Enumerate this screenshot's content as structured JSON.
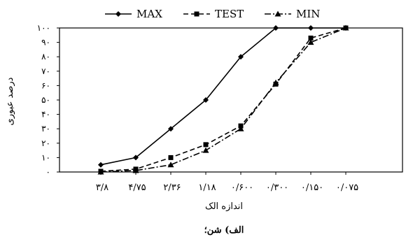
{
  "chart_data": {
    "type": "line",
    "x": [
      "۳/۸",
      "۴/۷۵",
      "۲/۳۶",
      "۱/۱۸",
      "۰/۶۰۰",
      "۰/۳۰۰",
      "۰/۱۵۰",
      "۰/۰۷۵"
    ],
    "y_ticks": [
      "۰",
      "۱۰",
      "۲۰",
      "۳۰",
      "۴۰",
      "۵۰",
      "۶۰",
      "۷۰",
      "۸۰",
      "۹۰",
      "۱۰۰"
    ],
    "ylim": [
      0,
      100
    ],
    "xlabel": "اندازه الک",
    "ylabel": "درصد عبوری",
    "caption": "الف) شن؛",
    "legend_position": "top",
    "series": [
      {
        "name": "MAX",
        "marker": "diamond",
        "dash": "solid",
        "points": [
          [
            0,
            5
          ],
          [
            1,
            10
          ],
          [
            2,
            30
          ],
          [
            3,
            50
          ],
          [
            4,
            80
          ],
          [
            5,
            100
          ],
          [
            6,
            100
          ],
          [
            7,
            100
          ]
        ]
      },
      {
        "name": "TEST",
        "marker": "square",
        "dash": "dashed",
        "points": [
          [
            0,
            0.5
          ],
          [
            1,
            2
          ],
          [
            2,
            10
          ],
          [
            3,
            19
          ],
          [
            4,
            32
          ],
          [
            5,
            61
          ],
          [
            6,
            93
          ],
          [
            7,
            100
          ]
        ]
      },
      {
        "name": "MIN",
        "marker": "triangle",
        "dash": "dashdot",
        "points": [
          [
            0,
            0
          ],
          [
            1,
            1
          ],
          [
            2,
            5
          ],
          [
            3,
            15
          ],
          [
            4,
            30
          ],
          [
            5,
            62
          ],
          [
            6,
            90
          ],
          [
            7,
            100
          ]
        ]
      }
    ]
  }
}
